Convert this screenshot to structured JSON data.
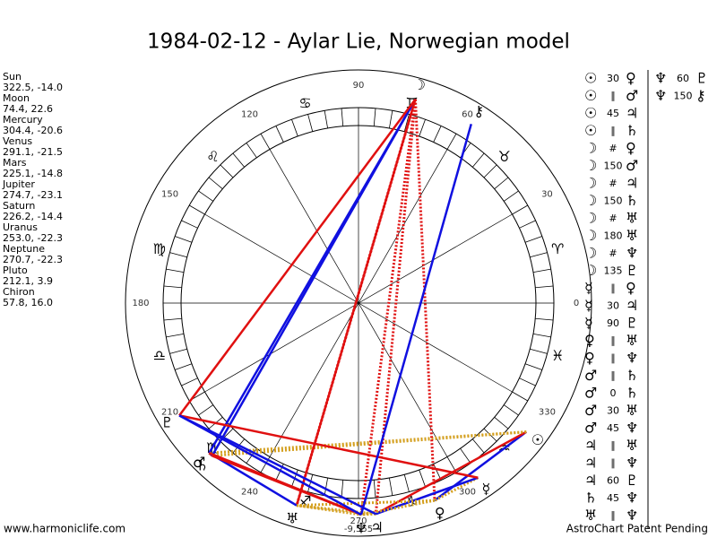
{
  "header": {
    "title": "1984-02-12 - Aylar Lie, Norwegian model"
  },
  "planets": [
    {
      "name": "Sun",
      "coords": "322.5, -14.0",
      "glyph": "☉"
    },
    {
      "name": "Moon",
      "coords": "74.4, 22.6",
      "glyph": "☽"
    },
    {
      "name": "Mercury",
      "coords": "304.4, -20.6",
      "glyph": "☿"
    },
    {
      "name": "Venus",
      "coords": "291.1, -21.5",
      "glyph": "♀"
    },
    {
      "name": "Mars",
      "coords": "225.1, -14.8",
      "glyph": "♂"
    },
    {
      "name": "Jupiter",
      "coords": "274.7, -23.1",
      "glyph": "♃"
    },
    {
      "name": "Saturn",
      "coords": "226.2, -14.4",
      "glyph": "♄"
    },
    {
      "name": "Uranus",
      "coords": "253.0, -22.3",
      "glyph": "♅"
    },
    {
      "name": "Neptune",
      "coords": "270.7, -22.3",
      "glyph": "♆"
    },
    {
      "name": "Pluto",
      "coords": "212.1, 3.9",
      "glyph": "♇"
    },
    {
      "name": "Chiron",
      "coords": "57.8, 16.0",
      "glyph": "⚷"
    }
  ],
  "wheel_labels": [
    0,
    30,
    60,
    90,
    120,
    150,
    180,
    210,
    240,
    270,
    300,
    330
  ],
  "signs": [
    "♈",
    "♉",
    "♊",
    "♋",
    "♌",
    "♍",
    "♎",
    "♏",
    "♐",
    "♑",
    "♒",
    "♓"
  ],
  "bottom_note": "-9,555",
  "aspects": [
    {
      "p1": "☉",
      "aspect": "30",
      "p2": "♀",
      "color": "#1010e0",
      "dotted": false
    },
    {
      "p1": "☉",
      "aspect": "∥",
      "p2": "♂",
      "color": "#d4a020",
      "dotted": true
    },
    {
      "p1": "☉",
      "aspect": "45",
      "p2": "♃",
      "color": "#e01010",
      "dotted": false
    },
    {
      "p1": "☉",
      "aspect": "∥",
      "p2": "♄",
      "color": "#d4a020",
      "dotted": true
    },
    {
      "p1": "☽",
      "aspect": "#",
      "p2": "♀",
      "color": "#e01010",
      "dotted": true
    },
    {
      "p1": "☽",
      "aspect": "150",
      "p2": "♂",
      "color": "#1010e0",
      "dotted": false
    },
    {
      "p1": "☽",
      "aspect": "#",
      "p2": "♃",
      "color": "#e01010",
      "dotted": true
    },
    {
      "p1": "☽",
      "aspect": "150",
      "p2": "♄",
      "color": "#1010e0",
      "dotted": false
    },
    {
      "p1": "☽",
      "aspect": "#",
      "p2": "♅",
      "color": "#e01010",
      "dotted": true
    },
    {
      "p1": "☽",
      "aspect": "180",
      "p2": "♅",
      "color": "#e01010",
      "dotted": false
    },
    {
      "p1": "☽",
      "aspect": "#",
      "p2": "♆",
      "color": "#e01010",
      "dotted": true
    },
    {
      "p1": "☽",
      "aspect": "135",
      "p2": "♇",
      "color": "#e01010",
      "dotted": false
    },
    {
      "p1": "☿",
      "aspect": "∥",
      "p2": "♀",
      "color": "#d4a020",
      "dotted": true
    },
    {
      "p1": "☿",
      "aspect": "30",
      "p2": "♃",
      "color": "#1010e0",
      "dotted": false
    },
    {
      "p1": "☿",
      "aspect": "90",
      "p2": "♇",
      "color": "#e01010",
      "dotted": false
    },
    {
      "p1": "♀",
      "aspect": "∥",
      "p2": "♅",
      "color": "#d4a020",
      "dotted": true
    },
    {
      "p1": "♀",
      "aspect": "∥",
      "p2": "♆",
      "color": "#d4a020",
      "dotted": true
    },
    {
      "p1": "♂",
      "aspect": "∥",
      "p2": "♄",
      "color": "#d4a020",
      "dotted": true
    },
    {
      "p1": "♂",
      "aspect": "0",
      "p2": "♄",
      "color": "#e01010",
      "dotted": false
    },
    {
      "p1": "♂",
      "aspect": "30",
      "p2": "♅",
      "color": "#1010e0",
      "dotted": false
    },
    {
      "p1": "♂",
      "aspect": "45",
      "p2": "♆",
      "color": "#e01010",
      "dotted": false
    },
    {
      "p1": "♃",
      "aspect": "∥",
      "p2": "♅",
      "color": "#d4a020",
      "dotted": true
    },
    {
      "p1": "♃",
      "aspect": "∥",
      "p2": "♆",
      "color": "#d4a020",
      "dotted": true
    },
    {
      "p1": "♃",
      "aspect": "60",
      "p2": "♇",
      "color": "#1010e0",
      "dotted": false
    },
    {
      "p1": "♄",
      "aspect": "45",
      "p2": "♆",
      "color": "#e01010",
      "dotted": false
    },
    {
      "p1": "♅",
      "aspect": "∥",
      "p2": "♆",
      "color": "#d4a020",
      "dotted": true
    },
    {
      "p1": "♆",
      "aspect": "60",
      "p2": "♇",
      "color": "#1010e0",
      "dotted": false
    },
    {
      "p1": "♆",
      "aspect": "150",
      "p2": "⚷",
      "color": "#1010e0",
      "dotted": false
    }
  ],
  "footer": {
    "left": "www.harmoniclife.com",
    "right": "AstroChart Patent Pending"
  }
}
